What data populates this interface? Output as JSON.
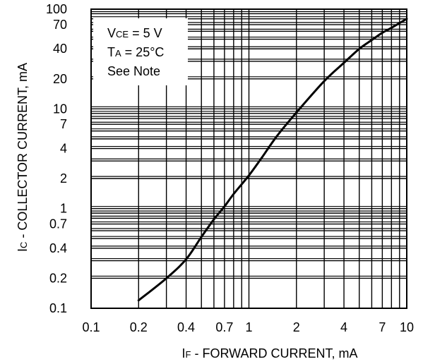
{
  "chart_data": {
    "type": "line",
    "title": "",
    "xscale": "log",
    "yscale": "log",
    "xlim": [
      0.1,
      10
    ],
    "ylim": [
      0.1,
      100
    ],
    "grid": true,
    "xlabel": {
      "main": "I",
      "sub": "F",
      "rest": " - FORWARD CURRENT, mA"
    },
    "ylabel": {
      "main": "I",
      "sub": "C",
      "rest": " - COLLECTOR CURRENT, mA"
    },
    "x_ticks": [
      {
        "value": 0.1,
        "label": "0.1"
      },
      {
        "value": 0.2,
        "label": "0.2"
      },
      {
        "value": 0.4,
        "label": "0.4"
      },
      {
        "value": 0.7,
        "label": "0.7"
      },
      {
        "value": 1,
        "label": "1"
      },
      {
        "value": 2,
        "label": "2"
      },
      {
        "value": 4,
        "label": "4"
      },
      {
        "value": 7,
        "label": "7"
      },
      {
        "value": 10,
        "label": "10"
      }
    ],
    "y_ticks": [
      {
        "value": 0.1,
        "label": "0.1"
      },
      {
        "value": 0.2,
        "label": "0.2"
      },
      {
        "value": 0.4,
        "label": "0.4"
      },
      {
        "value": 0.7,
        "label": "0.7"
      },
      {
        "value": 1,
        "label": "1"
      },
      {
        "value": 2,
        "label": "2"
      },
      {
        "value": 4,
        "label": "4"
      },
      {
        "value": 7,
        "label": "7"
      },
      {
        "value": 10,
        "label": "10"
      },
      {
        "value": 20,
        "label": "20"
      },
      {
        "value": 40,
        "label": "40"
      },
      {
        "value": 70,
        "label": "70"
      },
      {
        "value": 100,
        "label": "100"
      }
    ],
    "annotations": [
      {
        "main": "V",
        "sub": "CE",
        "rest": " = 5 V"
      },
      {
        "main": "T",
        "sub": "A",
        "rest": " = 25°C"
      },
      {
        "main": "See Note",
        "sub": "",
        "rest": ""
      }
    ],
    "series": [
      {
        "x": [
          0.2,
          0.3,
          0.4,
          0.5,
          0.6,
          0.7,
          0.8,
          1.0,
          1.2,
          1.5,
          2.0,
          3.0,
          4.0,
          5.0,
          6.0,
          7.0,
          8.0,
          10.0
        ],
        "y": [
          0.12,
          0.2,
          0.31,
          0.52,
          0.78,
          1.05,
          1.4,
          2.15,
          3.2,
          5.3,
          9.2,
          19,
          29,
          40,
          49,
          58,
          65,
          80
        ]
      }
    ],
    "colors": {
      "line": "#000000",
      "grid": "#000000",
      "background": "#ffffff"
    }
  }
}
